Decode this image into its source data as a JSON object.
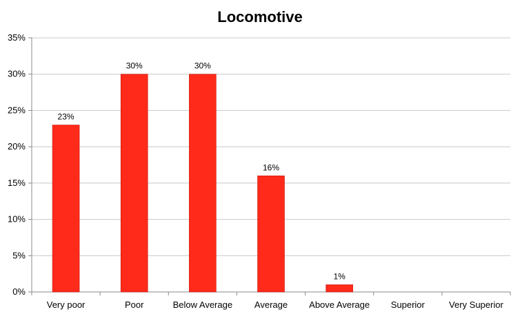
{
  "chart_data": {
    "type": "bar",
    "title": "Locomotive",
    "xlabel": "",
    "ylabel": "",
    "categories": [
      "Very poor",
      "Poor",
      "Below Average",
      "Average",
      "Above Average",
      "Superior",
      "Very Superior"
    ],
    "values": [
      23,
      30,
      30,
      16,
      1,
      null,
      null
    ],
    "data_labels": [
      "23%",
      "30%",
      "30%",
      "16%",
      "1%",
      "",
      ""
    ],
    "ylim": [
      0,
      35
    ],
    "yticks": [
      0,
      5,
      10,
      15,
      20,
      25,
      30,
      35
    ],
    "ytick_labels": [
      "0%",
      "5%",
      "10%",
      "15%",
      "20%",
      "25%",
      "30%",
      "35%"
    ],
    "grid": true,
    "legend": "none",
    "bar_color": "#ff2a1a",
    "bar_edge_color": "#c41a10",
    "grid_color": "#c8c8c8",
    "axis_color": "#888888"
  }
}
